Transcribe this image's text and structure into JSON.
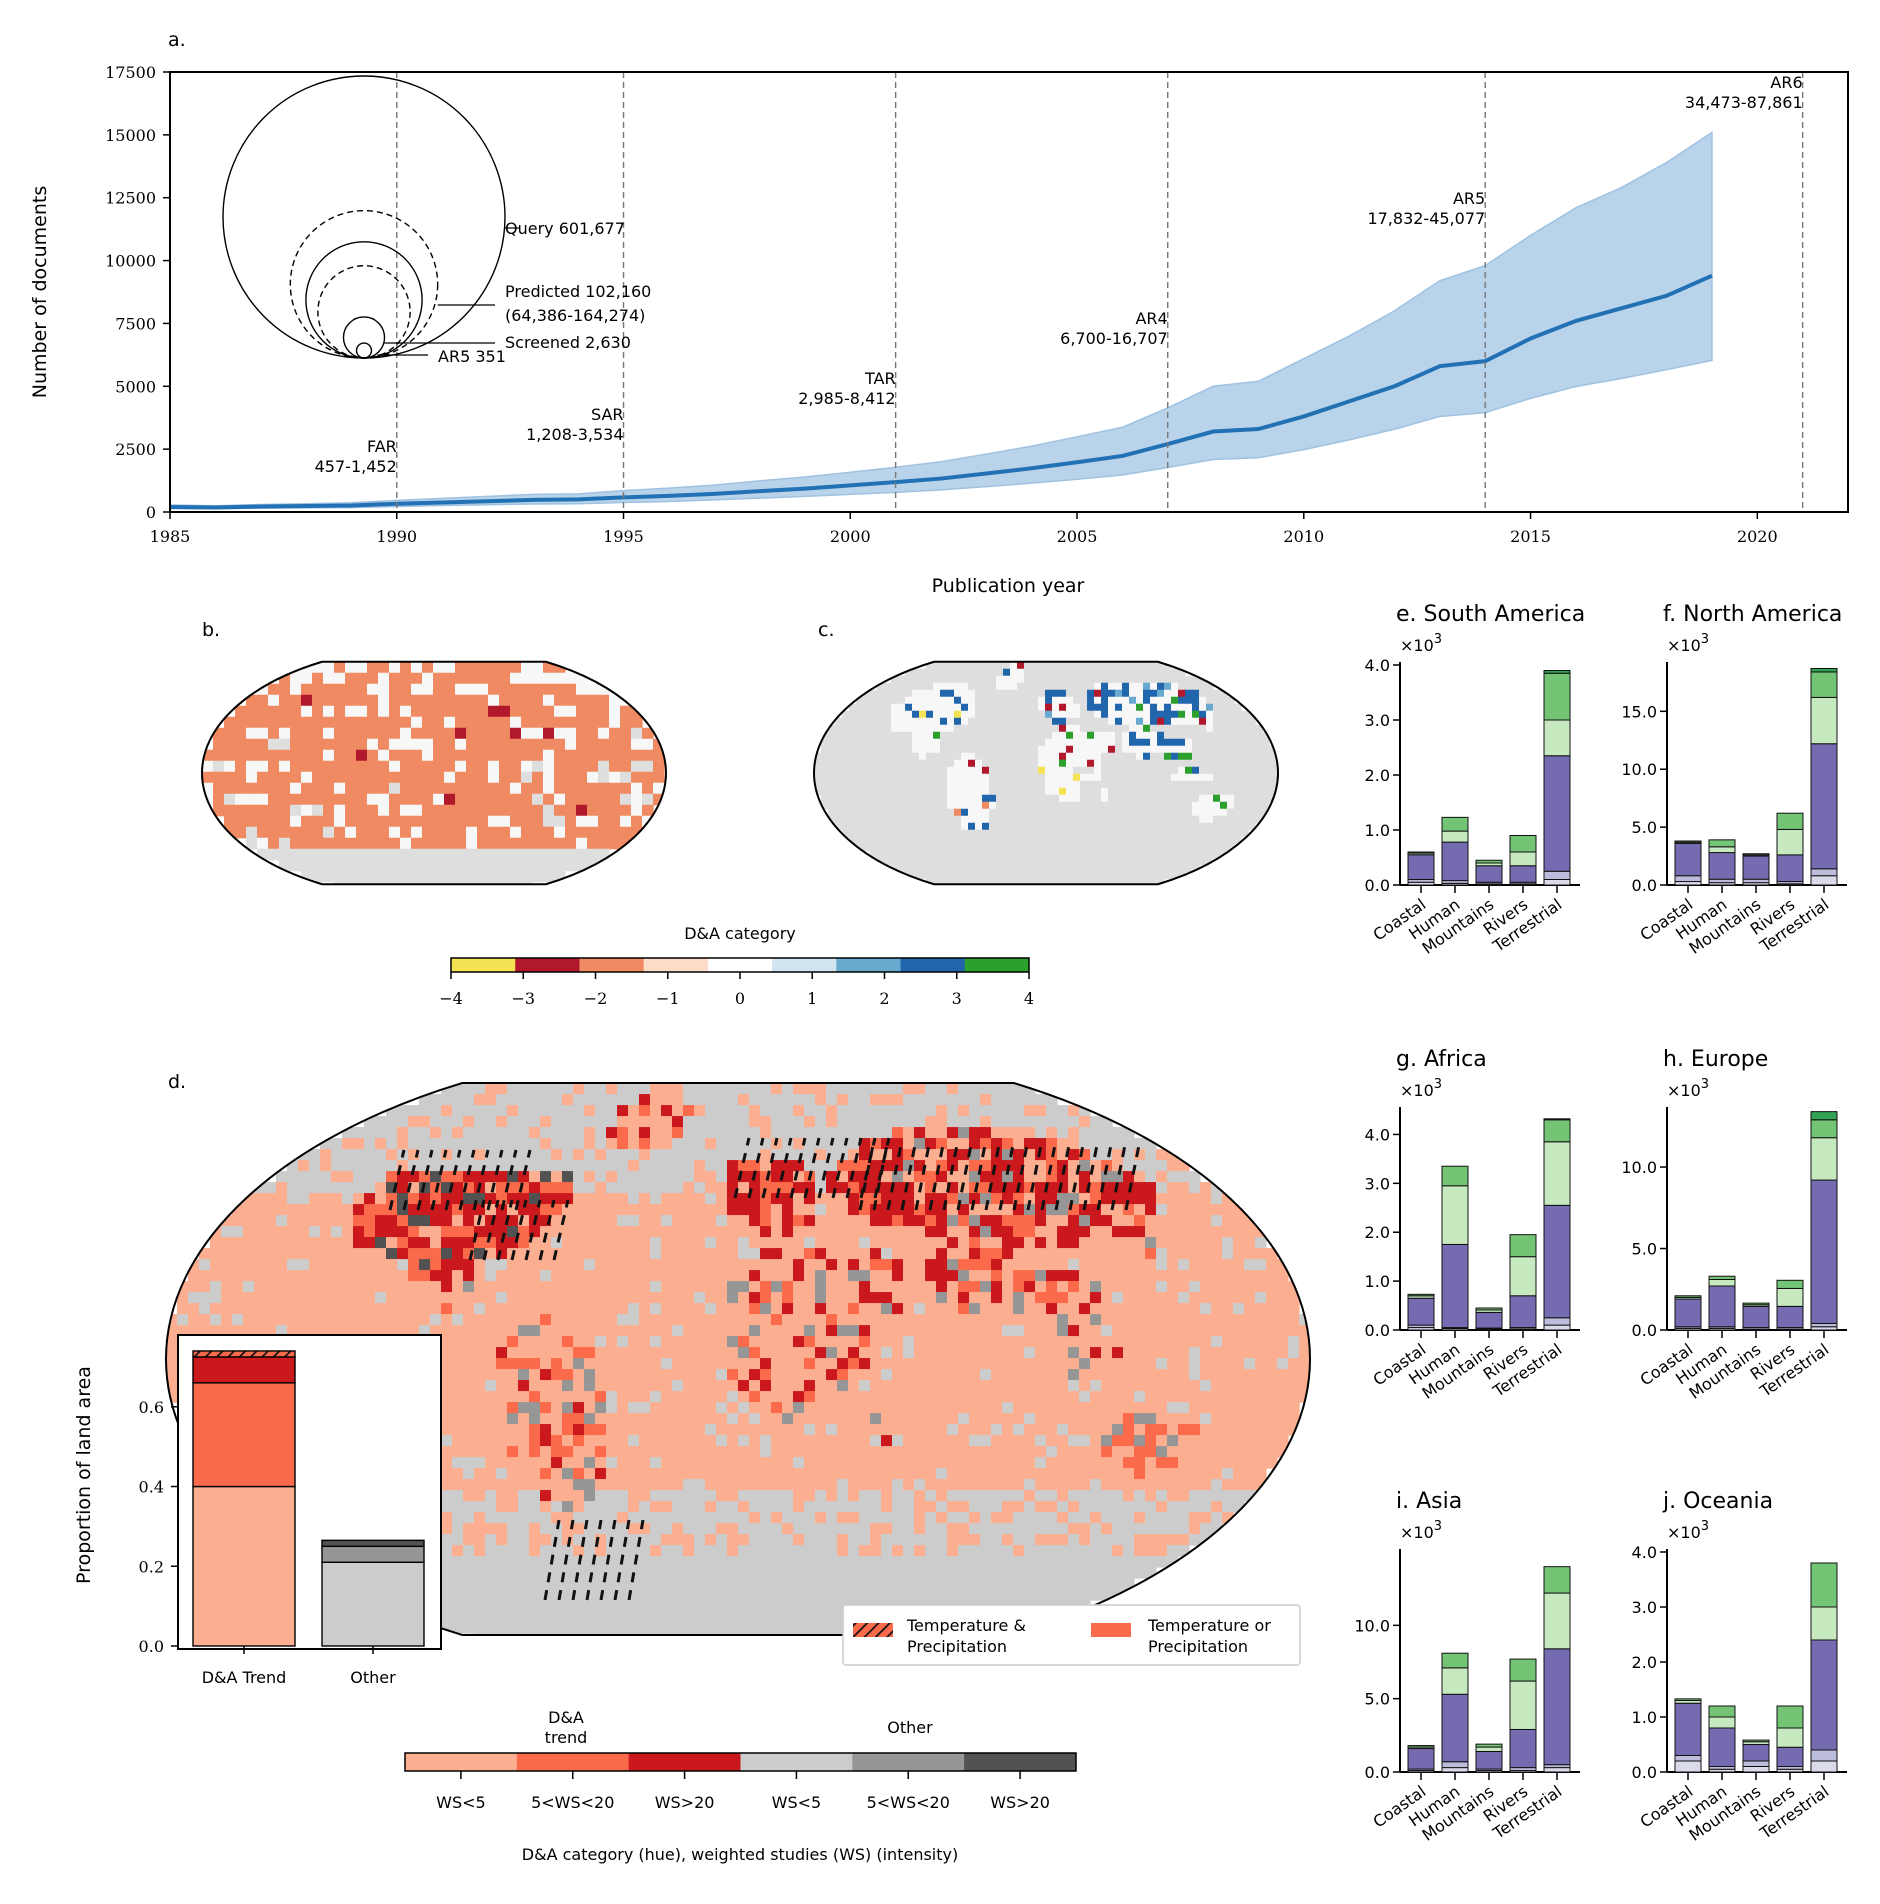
{
  "chart_data": [
    {
      "panel": "a.",
      "type": "area",
      "xlabel": "Publication year",
      "ylabel": "Number of documents",
      "xlim": [
        1985,
        2022
      ],
      "ylim": [
        0,
        17500
      ],
      "x_ticks": [
        1985,
        1990,
        1995,
        2000,
        2005,
        2010,
        2015,
        2020
      ],
      "y_ticks": [
        0,
        2500,
        5000,
        7500,
        10000,
        12500,
        15000,
        17500
      ],
      "series": [
        {
          "x": [
            1985,
            1986,
            1987,
            1988,
            1989,
            1990,
            1991,
            1992,
            1993,
            1994,
            1995,
            1996,
            1997,
            1998,
            1999,
            2000,
            2001,
            2002,
            2003,
            2004,
            2005,
            2006,
            2007,
            2008,
            2009,
            2010,
            2011,
            2012,
            2013,
            2014,
            2015,
            2016,
            2017,
            2018,
            2019
          ],
          "mean": [
            200,
            180,
            220,
            240,
            260,
            330,
            380,
            430,
            480,
            500,
            580,
            640,
            720,
            830,
            930,
            1060,
            1190,
            1330,
            1530,
            1740,
            1980,
            2230,
            2700,
            3200,
            3300,
            3800,
            4400,
            5000,
            5800,
            6000,
            6900,
            7600,
            8100,
            8600,
            9400
          ],
          "lower": [
            140,
            130,
            150,
            165,
            175,
            220,
            260,
            290,
            320,
            330,
            380,
            420,
            480,
            550,
            620,
            700,
            780,
            880,
            1010,
            1150,
            1300,
            1470,
            1770,
            2090,
            2160,
            2480,
            2870,
            3290,
            3800,
            3950,
            4520,
            4990,
            5310,
            5660,
            6030
          ],
          "upper": [
            280,
            250,
            300,
            330,
            370,
            460,
            540,
            620,
            700,
            720,
            850,
            950,
            1070,
            1240,
            1390,
            1580,
            1780,
            2000,
            2300,
            2620,
            2990,
            3370,
            4140,
            5000,
            5200,
            6100,
            7000,
            8000,
            9200,
            9800,
            11000,
            12100,
            12900,
            13900,
            15100
          ]
        }
      ],
      "reports": [
        {
          "name": "FAR",
          "year": 1990,
          "range": "457-1,452"
        },
        {
          "name": "SAR",
          "year": 1995,
          "range": "1,208-3,534"
        },
        {
          "name": "TAR",
          "year": 2001,
          "range": "2,985-8,412"
        },
        {
          "name": "AR4",
          "year": 2007,
          "range": "6,700-16,707"
        },
        {
          "name": "AR5",
          "year": 2014,
          "range": "17,832-45,077"
        },
        {
          "name": "AR6",
          "year": 2021,
          "range": "34,473-87,861"
        }
      ],
      "inset": [
        {
          "label": "Query 601,677",
          "value": 601677,
          "style": "solid"
        },
        {
          "label": "Predicted 102,160",
          "sub": "(64,386-164,274)",
          "value": 102160,
          "style": "solid",
          "lower": 64386,
          "upper": 164274
        },
        {
          "label": "Screened 2,630",
          "value": 2630,
          "style": "solid"
        },
        {
          "label": "AR5 351",
          "value": 351,
          "style": "solid"
        }
      ]
    },
    {
      "panel": "b.",
      "type": "heatmap",
      "projection": "robinson",
      "dominant_category": -2
    },
    {
      "panel": "c.",
      "type": "heatmap",
      "projection": "robinson"
    },
    {
      "colorbar": true,
      "title": "D&A category",
      "ticks": [
        -4,
        -3,
        -2,
        -1,
        0,
        1,
        2,
        3,
        4
      ],
      "tick_labels": [
        "−4",
        "−3",
        "−2",
        "−1",
        "0",
        "1",
        "2",
        "3",
        "4"
      ],
      "colors": [
        "#f5e353",
        "#b2182b",
        "#ef8a62",
        "#fddbc7",
        "#ffffff",
        "#d1e5f0",
        "#67a9cf",
        "#2166ac",
        "#2ca02c"
      ]
    },
    {
      "panel": "d.",
      "type": "heatmap",
      "projection": "robinson",
      "legend": [
        "Temperature & Precipitation",
        "Temperature or Precipitation"
      ],
      "legend_lines": [
        [
          "Temperature &",
          "Precipitation"
        ],
        [
          "Temperature or",
          "Precipitation"
        ]
      ],
      "colorbar": {
        "group_labels": [
          [
            "D&A",
            "trend"
          ],
          [
            "Other"
          ]
        ],
        "tick_labels": [
          "WS<5",
          "5<WS<20",
          "WS>20",
          "WS<5",
          "5<WS<20",
          "WS>20"
        ],
        "colors": [
          "#fcae91",
          "#fb6a4a",
          "#cb181d",
          "#cccccc",
          "#969696",
          "#525252"
        ],
        "xlabel": "D&A category (hue), weighted studies (WS) (intensity)"
      },
      "inset": {
        "type": "bar",
        "ylabel": "Proportion of land area",
        "categories": [
          "D&A Trend",
          "Other"
        ],
        "y_ticks": [
          0.0,
          0.2,
          0.4,
          0.6
        ],
        "ylim": [
          0,
          0.78
        ],
        "stacks": [
          [
            {
              "v": 0.4,
              "c": "#fcae91"
            },
            {
              "v": 0.26,
              "c": "#fb6a4a"
            },
            {
              "v": 0.065,
              "c": "#cb181d"
            },
            {
              "v": 0.015,
              "c": "#cb181d",
              "hatch": true
            }
          ],
          [
            {
              "v": 0.21,
              "c": "#cccccc"
            },
            {
              "v": 0.04,
              "c": "#969696"
            },
            {
              "v": 0.015,
              "c": "#525252"
            }
          ]
        ]
      }
    },
    {
      "type": "bar",
      "stacked": true,
      "panels": [
        {
          "panel": "e.",
          "title": "South America",
          "ylim": [
            0,
            4.0
          ],
          "y_ticks": [
            0.0,
            1.0,
            2.0,
            3.0,
            4.0
          ],
          "values": [
            [
              0.05,
              0.05,
              0.45,
              0.03,
              0.02,
              0.0
            ],
            [
              0.03,
              0.05,
              0.7,
              0.2,
              0.25,
              0.0
            ],
            [
              0.02,
              0.03,
              0.3,
              0.05,
              0.05,
              0.0
            ],
            [
              0.02,
              0.03,
              0.3,
              0.25,
              0.3,
              0.0
            ],
            [
              0.1,
              0.15,
              2.1,
              0.65,
              0.85,
              0.05
            ]
          ]
        },
        {
          "panel": "f.",
          "title": "North America",
          "ylim": [
            0,
            19
          ],
          "y_ticks": [
            0.0,
            5.0,
            10.0,
            15.0
          ],
          "values": [
            [
              0.3,
              0.5,
              2.8,
              0.1,
              0.1,
              0.0
            ],
            [
              0.2,
              0.3,
              2.3,
              0.5,
              0.6,
              0.0
            ],
            [
              0.2,
              0.3,
              2.0,
              0.1,
              0.1,
              0.0
            ],
            [
              0.1,
              0.2,
              2.3,
              2.2,
              1.4,
              0.0
            ],
            [
              0.8,
              0.6,
              10.8,
              4.0,
              2.2,
              0.3
            ]
          ]
        },
        {
          "panel": "g.",
          "title": "Africa",
          "ylim": [
            0,
            4.5
          ],
          "y_ticks": [
            0.0,
            1.0,
            2.0,
            3.0,
            4.0
          ],
          "values": [
            [
              0.05,
              0.05,
              0.55,
              0.05,
              0.03,
              0.0
            ],
            [
              0.03,
              0.02,
              1.7,
              1.2,
              0.4,
              0.0
            ],
            [
              0.02,
              0.02,
              0.32,
              0.05,
              0.04,
              0.0
            ],
            [
              0.02,
              0.03,
              0.65,
              0.8,
              0.45,
              0.0
            ],
            [
              0.1,
              0.15,
              2.3,
              1.3,
              0.45,
              0.02
            ]
          ]
        },
        {
          "panel": "h.",
          "title": "Europe",
          "ylim": [
            0,
            13.5
          ],
          "y_ticks": [
            0.0,
            5.0,
            10.0
          ],
          "values": [
            [
              0.1,
              0.1,
              1.7,
              0.1,
              0.1,
              0.0
            ],
            [
              0.1,
              0.1,
              2.5,
              0.4,
              0.2,
              0.0
            ],
            [
              0.05,
              0.1,
              1.3,
              0.1,
              0.1,
              0.0
            ],
            [
              0.05,
              0.1,
              1.3,
              1.1,
              0.5,
              0.0
            ],
            [
              0.2,
              0.2,
              8.8,
              2.6,
              1.1,
              0.5
            ]
          ]
        },
        {
          "panel": "i.",
          "title": "Asia",
          "ylim": [
            0,
            15
          ],
          "y_ticks": [
            0.0,
            5.0,
            10.0
          ],
          "values": [
            [
              0.1,
              0.1,
              1.4,
              0.1,
              0.1,
              0.0
            ],
            [
              0.3,
              0.4,
              4.6,
              1.8,
              1.0,
              0.0
            ],
            [
              0.1,
              0.1,
              1.2,
              0.3,
              0.2,
              0.0
            ],
            [
              0.1,
              0.2,
              2.6,
              3.3,
              1.5,
              0.0
            ],
            [
              0.3,
              0.2,
              7.9,
              3.8,
              1.8,
              0.0
            ]
          ]
        },
        {
          "panel": "j.",
          "title": "Oceania",
          "ylim": [
            0,
            4.0
          ],
          "y_ticks": [
            0.0,
            1.0,
            2.0,
            3.0,
            4.0
          ],
          "values": [
            [
              0.2,
              0.1,
              0.95,
              0.05,
              0.03,
              0.0
            ],
            [
              0.05,
              0.05,
              0.7,
              0.2,
              0.2,
              0.0
            ],
            [
              0.1,
              0.1,
              0.3,
              0.05,
              0.03,
              0.0
            ],
            [
              0.05,
              0.05,
              0.35,
              0.35,
              0.4,
              0.0
            ],
            [
              0.2,
              0.2,
              2.0,
              0.6,
              0.8,
              0.0
            ]
          ]
        }
      ],
      "multiplier": "×10",
      "multiplier_exp": "3",
      "categories": [
        "Coastal",
        "Human",
        "Mountains",
        "Rivers",
        "Terrestrial"
      ],
      "stack_colors": [
        "#dadaeb",
        "#bcbddc",
        "#756bb1",
        "#c7e9c0",
        "#74c476",
        "#31a354"
      ]
    }
  ]
}
